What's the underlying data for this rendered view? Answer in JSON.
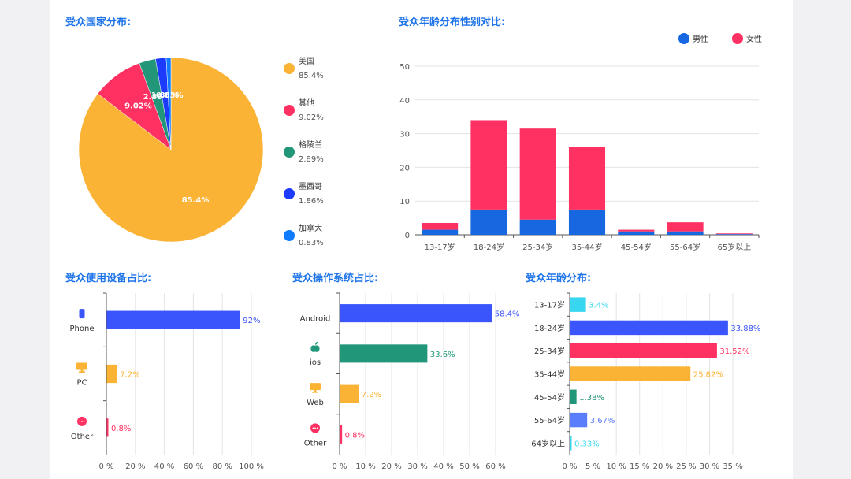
{
  "chart_data": [
    {
      "type": "pie",
      "title": "受众国家分布:",
      "legend_position": "right",
      "slices": [
        {
          "name": "美国",
          "value": 85.4,
          "label": "85.4%",
          "color": "#fbb335"
        },
        {
          "name": "其他",
          "value": 9.02,
          "label": "9.02%",
          "color": "#fe3162"
        },
        {
          "name": "格陵兰",
          "value": 2.89,
          "label": "2.89%",
          "color": "#229678"
        },
        {
          "name": "墨西哥",
          "value": 1.86,
          "label": "1.86%",
          "color": "#1c3bfd"
        },
        {
          "name": "加拿大",
          "value": 0.83,
          "label": "0.83%",
          "color": "#0f7cff"
        }
      ]
    },
    {
      "type": "bar",
      "stacked": true,
      "title": "受众年龄分布性别对比:",
      "legend_position": "top-right",
      "categories": [
        "13-17岁",
        "18-24岁",
        "25-34岁",
        "35-44岁",
        "45-54岁",
        "55-64岁",
        "65岁以上"
      ],
      "ylim": [
        0,
        50
      ],
      "yticks": [
        0,
        10,
        20,
        30,
        40,
        50
      ],
      "grid": true,
      "series": [
        {
          "name": "男性",
          "color": "#1667e0",
          "values": [
            1.5,
            7.5,
            4.5,
            7.5,
            1.0,
            1.0,
            0.2
          ]
        },
        {
          "name": "女性",
          "color": "#fe3162",
          "values": [
            2.0,
            26.5,
            27.0,
            18.5,
            0.5,
            2.7,
            0.2
          ]
        }
      ]
    },
    {
      "type": "bar",
      "orientation": "horizontal",
      "title": "受众使用设备占比:",
      "categories": [
        "Phone",
        "PC",
        "Other"
      ],
      "icons": [
        "phone-icon",
        "monitor-icon",
        "more-icon"
      ],
      "values": [
        92,
        7.2,
        0.8
      ],
      "value_labels": [
        "92%",
        "7.2%",
        "0.8%"
      ],
      "colors": [
        "#3a55fb",
        "#fbb335",
        "#fe3162"
      ],
      "xlim": [
        0,
        100
      ],
      "xticks": [
        "0 %",
        "20 %",
        "40 %",
        "60 %",
        "80 %",
        "100 %"
      ],
      "grid": true
    },
    {
      "type": "bar",
      "orientation": "horizontal",
      "title": "受众操作系统占比:",
      "categories": [
        "Android",
        "ios",
        "Web",
        "Other"
      ],
      "icons": [
        "",
        "apple-icon",
        "monitor-icon",
        "more-icon"
      ],
      "values": [
        58.4,
        33.6,
        7.2,
        0.8
      ],
      "value_labels": [
        "58.4%",
        "33.6%",
        "7.2%",
        "0.8%"
      ],
      "colors": [
        "#3a55fb",
        "#229678",
        "#fbb335",
        "#fe3162"
      ],
      "xlim": [
        0,
        60
      ],
      "xticks": [
        "0 %",
        "10 %",
        "20 %",
        "30 %",
        "40 %",
        "50 %",
        "60 %"
      ],
      "grid": true
    },
    {
      "type": "bar",
      "orientation": "horizontal",
      "title": "受众年龄分布:",
      "categories": [
        "13-17岁",
        "18-24岁",
        "25-34岁",
        "35-44岁",
        "45-54岁",
        "55-64岁",
        "64岁以上"
      ],
      "values": [
        3.4,
        33.88,
        31.52,
        25.82,
        1.38,
        3.67,
        0.33
      ],
      "value_labels": [
        "3.4%",
        "33.88%",
        "31.52%",
        "25.82%",
        "1.38%",
        "3.67%",
        "0.33%"
      ],
      "colors": [
        "#38d6f0",
        "#3a55fb",
        "#fe3162",
        "#fbb335",
        "#229678",
        "#5b7dfb",
        "#38d6f0"
      ],
      "xlim": [
        0,
        35
      ],
      "xticks": [
        "0 %",
        "5 %",
        "10 %",
        "15 %",
        "20 %",
        "25 %",
        "30 %",
        "35 %"
      ],
      "grid": true
    }
  ]
}
